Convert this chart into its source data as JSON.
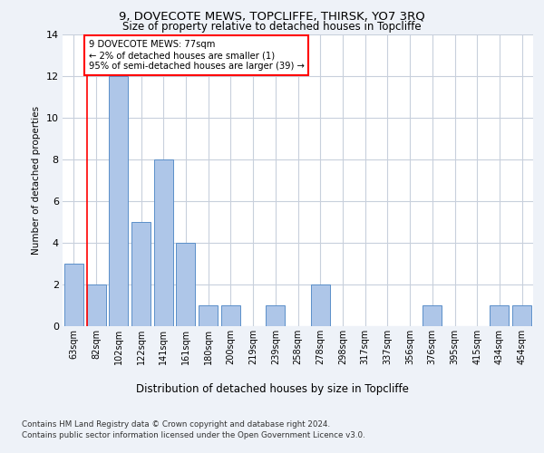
{
  "title": "9, DOVECOTE MEWS, TOPCLIFFE, THIRSK, YO7 3RQ",
  "subtitle": "Size of property relative to detached houses in Topcliffe",
  "xlabel": "Distribution of detached houses by size in Topcliffe",
  "ylabel": "Number of detached properties",
  "categories": [
    "63sqm",
    "82sqm",
    "102sqm",
    "122sqm",
    "141sqm",
    "161sqm",
    "180sqm",
    "200sqm",
    "219sqm",
    "239sqm",
    "258sqm",
    "278sqm",
    "298sqm",
    "317sqm",
    "337sqm",
    "356sqm",
    "376sqm",
    "395sqm",
    "415sqm",
    "434sqm",
    "454sqm"
  ],
  "values": [
    3,
    2,
    12,
    5,
    8,
    4,
    1,
    1,
    0,
    1,
    0,
    2,
    0,
    0,
    0,
    0,
    1,
    0,
    0,
    1,
    1
  ],
  "bar_color": "#aec6e8",
  "bar_edge_color": "#5b8fc9",
  "red_line_x": 0.575,
  "annotation_text": "9 DOVECOTE MEWS: 77sqm\n← 2% of detached houses are smaller (1)\n95% of semi-detached houses are larger (39) →",
  "annotation_box_color": "white",
  "annotation_box_edge_color": "red",
  "ylim": [
    0,
    14
  ],
  "yticks": [
    0,
    2,
    4,
    6,
    8,
    10,
    12,
    14
  ],
  "footer_line1": "Contains HM Land Registry data © Crown copyright and database right 2024.",
  "footer_line2": "Contains public sector information licensed under the Open Government Licence v3.0.",
  "bg_color": "#eef2f8",
  "plot_bg_color": "#ffffff",
  "grid_color": "#c8d0dc"
}
